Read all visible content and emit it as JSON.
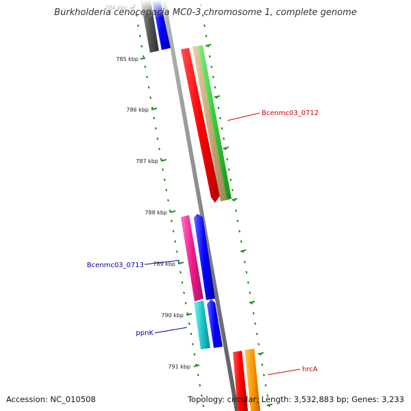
{
  "title": "Burkholderia cenocepacia MC0-3 chromosome 1, complete genome",
  "footer": {
    "accession": "Accession: NC_010508",
    "summary": "Topology: circular; Length: 3,532,883 bp; Genes: 3,233"
  },
  "ticks": [
    "784 kbp",
    "785 kbp",
    "786 kbp",
    "787 kbp",
    "788 kbp",
    "789 kbp",
    "790 kbp",
    "791 kbp"
  ],
  "gene_labels": [
    {
      "text": "Bcenmc03_0712",
      "color": "#cc0000"
    },
    {
      "text": "Bcenmc03_0713",
      "color": "#000099"
    },
    {
      "text": "ppnK",
      "color": "#000099"
    },
    {
      "text": "hrcA",
      "color": "#cc0000"
    }
  ],
  "colors": {
    "backbone": "#888888",
    "tick_marks": "#1a8a1a",
    "red": "#ff0000",
    "tan": "#c8aa78",
    "green": "#33cc33",
    "magenta": "#ee1a8c",
    "blue": "#0000ff",
    "cyan": "#1ac8c8",
    "orange": "#ff9900",
    "gray": "#555555"
  }
}
